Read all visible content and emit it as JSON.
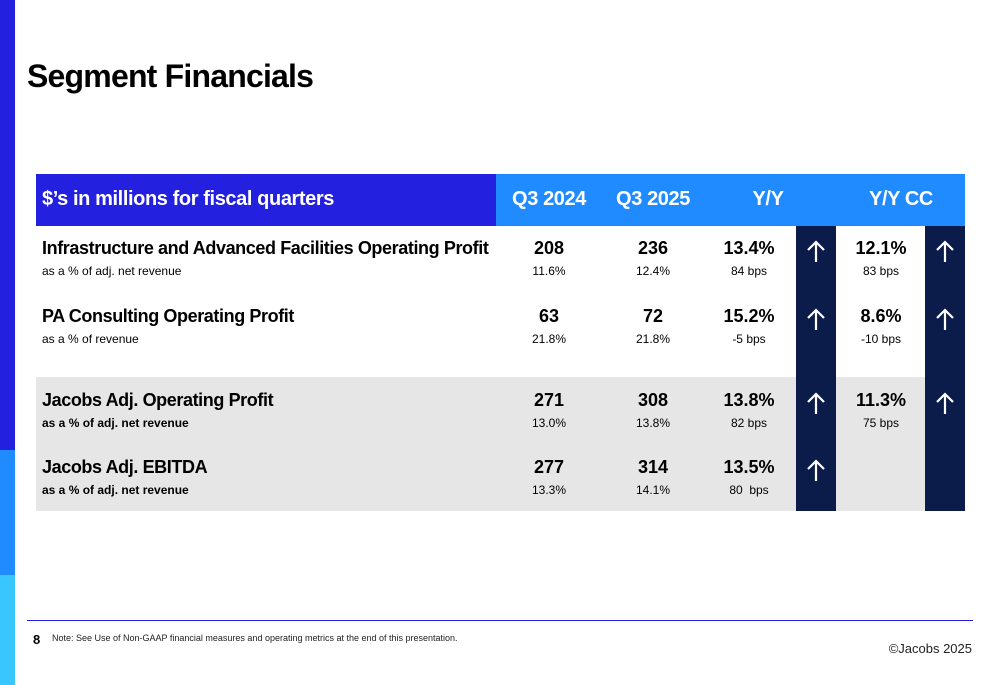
{
  "title": "Segment Financials",
  "table": {
    "header": {
      "label": "$’s in millions for fiscal quarters",
      "q3_2024": "Q3 2024",
      "q3_2025": "Q3 2025",
      "yy": "Y/Y",
      "yy_cc": "Y/Y CC"
    },
    "rows": [
      {
        "label": "Infrastructure and Advanced Facilities Operating Profit",
        "sub": "as a % of adj. net revenue",
        "q3_2024": "208",
        "q3_2024_sub": "11.6%",
        "q3_2025": "236",
        "q3_2025_sub": "12.4%",
        "yy": "13.4%",
        "yy_sub": "84 bps",
        "yy_arrow": "up-arrow-icon",
        "yy_cc": "12.1%",
        "yy_cc_sub": "83 bps",
        "yy_cc_arrow": "up-arrow-icon"
      },
      {
        "label": "PA Consulting Operating Profit",
        "sub": "as a % of revenue",
        "q3_2024": "63",
        "q3_2024_sub": "21.8%",
        "q3_2025": "72",
        "q3_2025_sub": "21.8%",
        "yy": "15.2%",
        "yy_sub": "-5 bps",
        "yy_arrow": "up-arrow-icon",
        "yy_cc": "8.6%",
        "yy_cc_sub": "-10 bps",
        "yy_cc_arrow": "up-arrow-icon"
      },
      {
        "label": "Jacobs Adj. Operating Profit",
        "sub": "as a % of adj. net revenue",
        "q3_2024": "271",
        "q3_2024_sub": "13.0%",
        "q3_2025": "308",
        "q3_2025_sub": "13.8%",
        "yy": "13.8%",
        "yy_sub": "82 bps",
        "yy_arrow": "up-arrow-icon",
        "yy_cc": "11.3%",
        "yy_cc_sub": "75 bps",
        "yy_cc_arrow": "up-arrow-icon"
      },
      {
        "label": "Jacobs Adj. EBITDA",
        "sub": "as a % of adj. net revenue",
        "q3_2024": "277",
        "q3_2024_sub": "13.3%",
        "q3_2025": "314",
        "q3_2025_sub": "14.1%",
        "yy": "13.5%",
        "yy_sub": "80  bps",
        "yy_arrow": "up-arrow-icon"
      }
    ]
  },
  "footer": {
    "page_number": "8",
    "note": "Note: See Use of Non-GAAP financial measures and operating metrics at the end of this presentation.",
    "copyright": "©Jacobs 2025"
  },
  "colors": {
    "primary_blue": "#2320e0",
    "sky_blue": "#1f8bff",
    "cyan": "#39c6ff",
    "navy": "#0b1c4a",
    "row_shade": "#e6e6e6"
  }
}
